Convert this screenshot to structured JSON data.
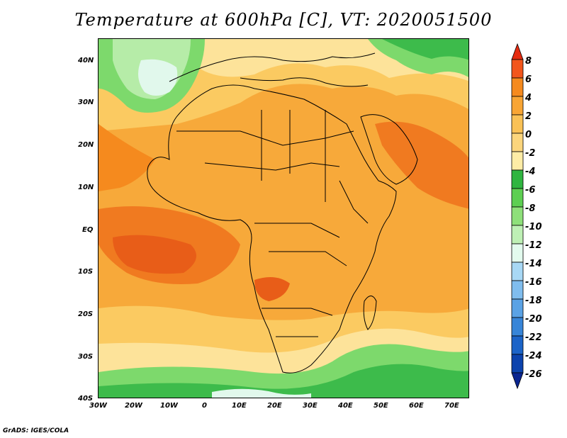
{
  "title": "Temperature at 600hPa [C], VT: 2020051500",
  "credit": "GrADS: IGES/COLA",
  "lat_labels": [
    "40N",
    "30N",
    "20N",
    "10N",
    "EQ",
    "10S",
    "20S",
    "30S",
    "40S"
  ],
  "lon_labels": [
    "30W",
    "20W",
    "10W",
    "0",
    "10E",
    "20E",
    "30E",
    "40E",
    "50E",
    "60E",
    "70E"
  ],
  "colorbar": {
    "labels": [
      "8",
      "6",
      "4",
      "2",
      "0",
      "-2",
      "-4",
      "-6",
      "-8",
      "-10",
      "-12",
      "-14",
      "-16",
      "-18",
      "-20",
      "-22",
      "-24",
      "-26"
    ],
    "colors": [
      "#e52b10",
      "#f2561c",
      "#f58a1e",
      "#f8a534",
      "#f9c156",
      "#fbd57c",
      "#fdeca6",
      "#2fb540",
      "#5dcf52",
      "#8ee07a",
      "#bef0b5",
      "#e3fbee",
      "#a8d8f5",
      "#80bdee",
      "#5aa2e5",
      "#3785d8",
      "#1c64c8",
      "#0c43ad",
      "#0a2590"
    ]
  },
  "map_colors": {
    "ocean_deep": "#f5a231",
    "warm_land": "#f6a032",
    "hot": "#f07a20",
    "mild": "#fbca61",
    "cool": "#fde39a",
    "green_dark": "#3dbb4b",
    "green": "#7dd96c",
    "green_light": "#b6eca8",
    "pale": "#e1f8ec",
    "sky": "#aad7f4"
  }
}
